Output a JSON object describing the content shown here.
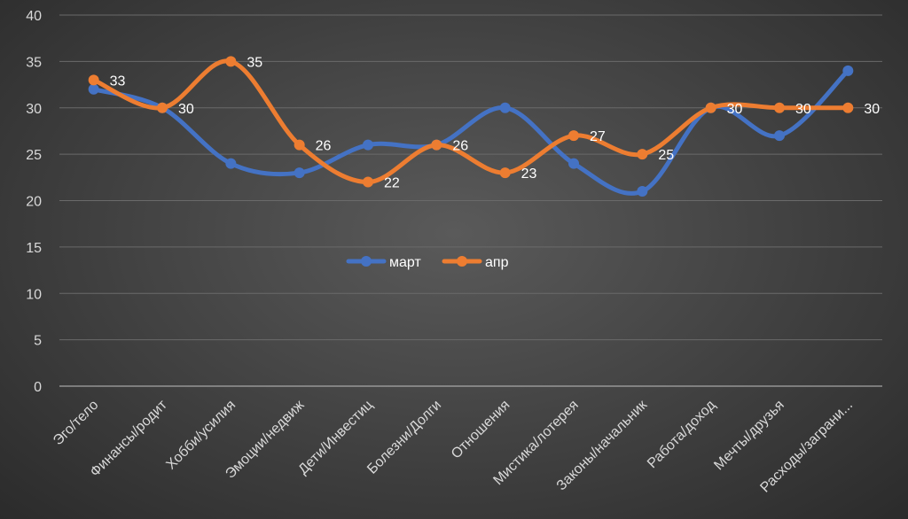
{
  "chart_data": {
    "type": "line",
    "title": "",
    "xlabel": "",
    "ylabel": "",
    "ylim": [
      0,
      40
    ],
    "yticks": [
      0,
      5,
      10,
      15,
      20,
      25,
      30,
      35,
      40
    ],
    "grid": true,
    "legend_position": "center",
    "categories": [
      "Эго/тело",
      "Финансы/родит",
      "Хобби/усилия",
      "Эмоции/недвиж",
      "Дети/Инвестиц",
      "Болезни/Долги",
      "Отношения",
      "Мистика/лотерея",
      "Законы/начальник",
      "Работа/доход",
      "Мечты/друзья",
      "Расходы/заграни..."
    ],
    "series": [
      {
        "name": "март",
        "color": "#4472c4",
        "values": [
          32,
          30,
          24,
          23,
          26,
          26,
          30,
          24,
          21,
          30,
          27,
          34
        ],
        "show_labels": false
      },
      {
        "name": "апр",
        "color": "#ed7d31",
        "values": [
          33,
          30,
          35,
          26,
          22,
          26,
          23,
          27,
          25,
          30,
          30,
          30
        ],
        "show_labels": true
      }
    ]
  }
}
